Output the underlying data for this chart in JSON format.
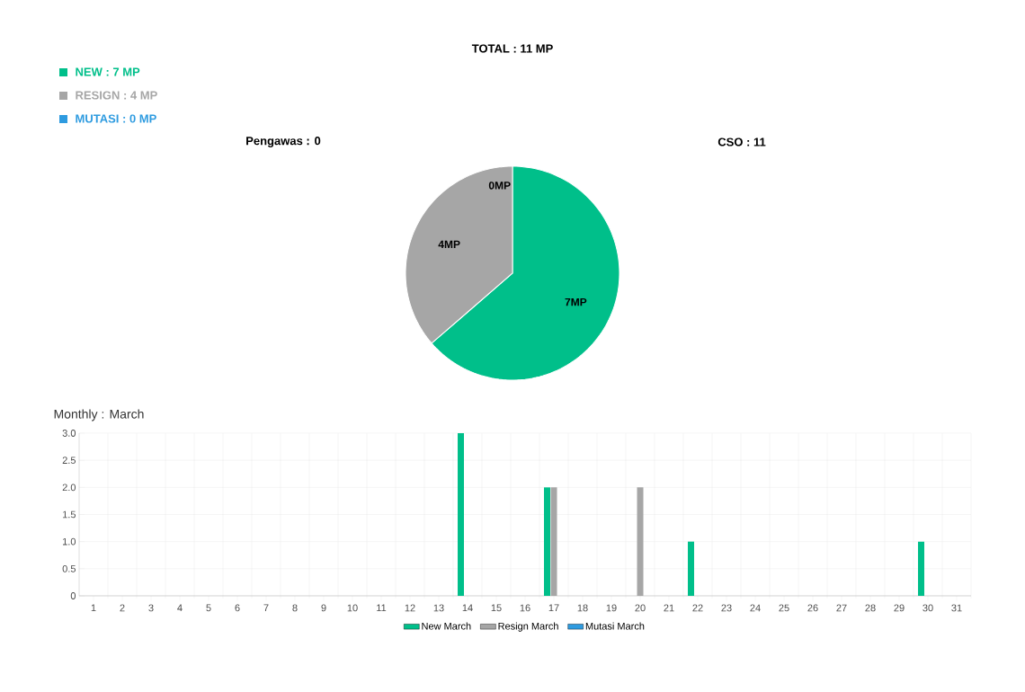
{
  "chart_data": [
    {
      "type": "pie",
      "title": "TOTAL : 11 MP",
      "categories": [
        "NEW : 7 MP",
        "RESIGN : 4 MP",
        "MUTASI : 0 MP"
      ],
      "values": [
        7,
        4,
        0
      ],
      "colors": [
        "#00bf8a",
        "#a6a6a6",
        "#2e9be0"
      ],
      "value_labels": [
        "7MP",
        "4MP",
        "0MP"
      ],
      "legend": "top left",
      "annotations": [
        "Pengawas : 0",
        "CSO : 11"
      ]
    },
    {
      "type": "bar",
      "title": "Monthly : March",
      "categories": [
        "1",
        "2",
        "3",
        "4",
        "5",
        "6",
        "7",
        "8",
        "9",
        "10",
        "11",
        "12",
        "13",
        "14",
        "15",
        "16",
        "17",
        "18",
        "19",
        "20",
        "21",
        "22",
        "23",
        "24",
        "25",
        "26",
        "27",
        "28",
        "29",
        "30",
        "31"
      ],
      "series": [
        {
          "name": "New March",
          "color": "#00bf8a",
          "values": [
            0,
            0,
            0,
            0,
            0,
            0,
            0,
            0,
            0,
            0,
            0,
            0,
            0,
            3,
            0,
            0,
            2,
            0,
            0,
            0,
            0,
            1,
            0,
            0,
            0,
            0,
            0,
            0,
            0,
            1,
            0
          ]
        },
        {
          "name": "Resign March",
          "color": "#a6a6a6",
          "values": [
            0,
            0,
            0,
            0,
            0,
            0,
            0,
            0,
            0,
            0,
            0,
            0,
            0,
            0,
            0,
            0,
            2,
            0,
            0,
            2,
            0,
            0,
            0,
            0,
            0,
            0,
            0,
            0,
            0,
            0,
            0
          ]
        },
        {
          "name": "Mutasi March",
          "color": "#2e9be0",
          "values": [
            0,
            0,
            0,
            0,
            0,
            0,
            0,
            0,
            0,
            0,
            0,
            0,
            0,
            0,
            0,
            0,
            0,
            0,
            0,
            0,
            0,
            0,
            0,
            0,
            0,
            0,
            0,
            0,
            0,
            0,
            0
          ]
        }
      ],
      "ylim": [
        0,
        3
      ],
      "yticks": [
        0,
        0.5,
        {
          "value": 1,
          "label": "1.0"
        },
        1.5,
        {
          "value": 2,
          "label": "2.0"
        },
        2.5,
        {
          "value": 3,
          "label": "3.0"
        }
      ],
      "grid": true,
      "legend": "bottom"
    }
  ]
}
